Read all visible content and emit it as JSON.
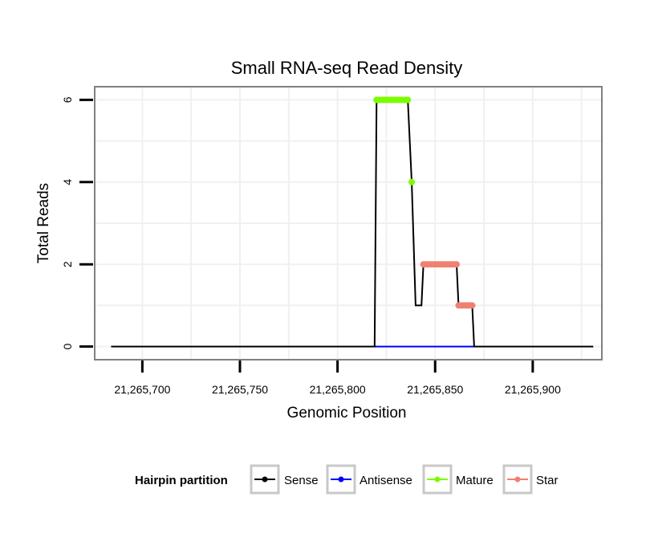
{
  "chart_data": {
    "type": "line",
    "title": "Small RNA-seq Read Density",
    "xlabel": "Genomic Position",
    "ylabel": "Total Reads",
    "xlim": [
      21265676,
      21265935
    ],
    "ylim": [
      -0.3,
      6.3
    ],
    "x_ticks": [
      21265700,
      21265750,
      21265800,
      21265850,
      21265900
    ],
    "x_tick_labels": [
      "21,265,700",
      "21,265,750",
      "21,265,800",
      "21,265,850",
      "21,265,900"
    ],
    "y_ticks": [
      0,
      2,
      4,
      6
    ],
    "y_tick_labels": [
      "0",
      "2",
      "4",
      "6"
    ],
    "grid": true,
    "legend": {
      "title": "Hairpin partition",
      "position": "bottom",
      "entries": [
        {
          "name": "Sense",
          "color": "#000000"
        },
        {
          "name": "Antisense",
          "color": "#0000ff"
        },
        {
          "name": "Mature",
          "color": "#7cfc00"
        },
        {
          "name": "Star",
          "color": "#f08070"
        }
      ]
    },
    "series": [
      {
        "name": "Sense",
        "color": "#000000",
        "style": "line",
        "x": [
          21265684,
          21265819,
          21265820,
          21265836,
          21265838,
          21265840,
          21265843,
          21265844,
          21265861,
          21265862,
          21265869,
          21265870,
          21265931
        ],
        "y": [
          0,
          0,
          6,
          6,
          4,
          1,
          1,
          2,
          2,
          1,
          1,
          0,
          0
        ]
      },
      {
        "name": "Antisense",
        "color": "#0000ff",
        "style": "line",
        "x": [
          21265819,
          21265870
        ],
        "y": [
          0,
          0
        ]
      },
      {
        "name": "Mature",
        "color": "#7cfc00",
        "style": "points",
        "x": [
          21265820,
          21265821,
          21265822,
          21265823,
          21265824,
          21265825,
          21265826,
          21265827,
          21265828,
          21265829,
          21265830,
          21265831,
          21265832,
          21265833,
          21265834,
          21265835,
          21265836,
          21265838
        ],
        "y": [
          6,
          6,
          6,
          6,
          6,
          6,
          6,
          6,
          6,
          6,
          6,
          6,
          6,
          6,
          6,
          6,
          6,
          4
        ]
      },
      {
        "name": "Star",
        "color": "#f08070",
        "style": "points",
        "x": [
          21265844,
          21265845,
          21265846,
          21265847,
          21265848,
          21265849,
          21265850,
          21265851,
          21265852,
          21265853,
          21265854,
          21265855,
          21265856,
          21265857,
          21265858,
          21265859,
          21265860,
          21265861,
          21265862,
          21265863,
          21265864,
          21265865,
          21265866,
          21265867,
          21265868,
          21265869
        ],
        "y": [
          2,
          2,
          2,
          2,
          2,
          2,
          2,
          2,
          2,
          2,
          2,
          2,
          2,
          2,
          2,
          2,
          2,
          2,
          1,
          1,
          1,
          1,
          1,
          1,
          1,
          1
        ]
      }
    ]
  }
}
